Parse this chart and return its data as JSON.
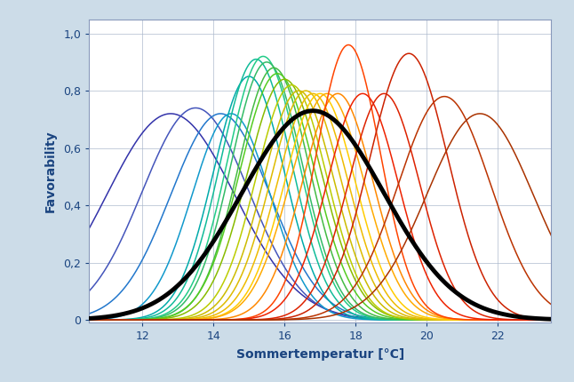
{
  "xlabel": "Sommertemperatur [°C]",
  "ylabel": "Favorability",
  "background_color": "#ccdce8",
  "plot_bg_color": "#ffffff",
  "xlim": [
    10.5,
    23.5
  ],
  "ylim": [
    -0.01,
    1.05
  ],
  "xticks": [
    12,
    14,
    16,
    18,
    20,
    22
  ],
  "yticks": [
    0,
    0.2,
    0.4,
    0.6,
    0.8,
    1.0
  ],
  "ytick_labels": [
    "0",
    "0,2",
    "0,4",
    "0,6",
    "0,8",
    "1,0"
  ],
  "curves": [
    {
      "mu": 12.8,
      "sigma": 1.8,
      "amplitude": 0.72,
      "color": "#3333aa"
    },
    {
      "mu": 13.5,
      "sigma": 1.5,
      "amplitude": 0.74,
      "color": "#4455bb"
    },
    {
      "mu": 14.2,
      "sigma": 1.4,
      "amplitude": 0.72,
      "color": "#2277cc"
    },
    {
      "mu": 14.5,
      "sigma": 1.1,
      "amplitude": 0.72,
      "color": "#1199cc"
    },
    {
      "mu": 15.0,
      "sigma": 1.0,
      "amplitude": 0.85,
      "color": "#00aaaa"
    },
    {
      "mu": 15.2,
      "sigma": 1.0,
      "amplitude": 0.91,
      "color": "#11bb99"
    },
    {
      "mu": 15.4,
      "sigma": 1.0,
      "amplitude": 0.92,
      "color": "#22cc88"
    },
    {
      "mu": 15.5,
      "sigma": 1.0,
      "amplitude": 0.9,
      "color": "#33bb66"
    },
    {
      "mu": 15.7,
      "sigma": 1.0,
      "amplitude": 0.88,
      "color": "#44bb44"
    },
    {
      "mu": 15.8,
      "sigma": 1.05,
      "amplitude": 0.86,
      "color": "#55cc22"
    },
    {
      "mu": 16.0,
      "sigma": 1.05,
      "amplitude": 0.84,
      "color": "#88bb00"
    },
    {
      "mu": 16.2,
      "sigma": 1.0,
      "amplitude": 0.82,
      "color": "#bbcc00"
    },
    {
      "mu": 16.4,
      "sigma": 1.0,
      "amplitude": 0.8,
      "color": "#ccbb00"
    },
    {
      "mu": 16.6,
      "sigma": 1.0,
      "amplitude": 0.8,
      "color": "#ddbb00"
    },
    {
      "mu": 16.8,
      "sigma": 1.0,
      "amplitude": 0.79,
      "color": "#eebb00"
    },
    {
      "mu": 17.0,
      "sigma": 1.0,
      "amplitude": 0.79,
      "color": "#ffcc00"
    },
    {
      "mu": 17.2,
      "sigma": 1.05,
      "amplitude": 0.79,
      "color": "#ffaa00"
    },
    {
      "mu": 17.5,
      "sigma": 1.0,
      "amplitude": 0.79,
      "color": "#ff8800"
    },
    {
      "mu": 17.8,
      "sigma": 0.9,
      "amplitude": 0.96,
      "color": "#ff4400"
    },
    {
      "mu": 18.2,
      "sigma": 1.0,
      "amplitude": 0.79,
      "color": "#ee2200"
    },
    {
      "mu": 18.8,
      "sigma": 1.0,
      "amplitude": 0.79,
      "color": "#dd2200"
    },
    {
      "mu": 19.5,
      "sigma": 1.1,
      "amplitude": 0.93,
      "color": "#cc2200"
    },
    {
      "mu": 20.5,
      "sigma": 1.3,
      "amplitude": 0.78,
      "color": "#bb3300"
    },
    {
      "mu": 21.5,
      "sigma": 1.5,
      "amplitude": 0.72,
      "color": "#aa3300"
    }
  ],
  "mean_curve": {
    "mu": 16.8,
    "sigma": 2.0,
    "amplitude": 0.73,
    "color": "#000000",
    "lw": 3.5
  }
}
